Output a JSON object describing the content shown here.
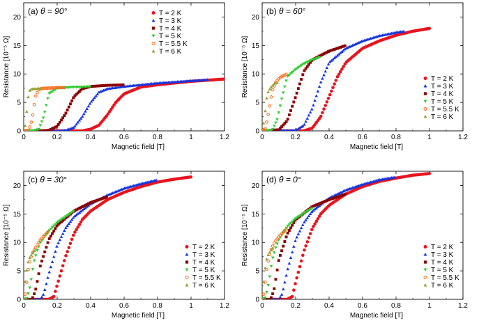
{
  "chart_data": [
    {
      "type": "scatter",
      "panel_label": "(a)",
      "theta_label": "θ = 90°",
      "xlabel": "Magnetic field  [T]",
      "ylabel": "Resistance  [10⁻⁵ Ω]",
      "xlim": [
        0,
        1.2
      ],
      "ylim": [
        0,
        22.5
      ],
      "xticks": [
        0,
        0.2,
        0.4,
        0.6,
        0.8,
        1,
        1.2
      ],
      "xtick_labels": [
        "0",
        "0.2",
        "0.4",
        "0.6",
        "0.8",
        "1",
        "1.2"
      ],
      "yticks": [
        0,
        5,
        10,
        15,
        20
      ],
      "ytick_labels": [
        "0",
        "5",
        "10",
        "15",
        "20"
      ],
      "legend_position": "top-right",
      "series": [
        {
          "name": "T = 2 K",
          "color": "#e8141e",
          "marker": "circle",
          "x": [
            0,
            0.2,
            0.35,
            0.4,
            0.45,
            0.5,
            0.55,
            0.6,
            0.7,
            0.8,
            0.9,
            1.0,
            1.1,
            1.2
          ],
          "y": [
            0,
            0,
            0,
            0.3,
            1.0,
            2.8,
            5.0,
            6.5,
            7.7,
            8.1,
            8.4,
            8.7,
            8.9,
            9.1
          ]
        },
        {
          "name": "T = 3 K",
          "color": "#1535e0",
          "marker": "triangle-up",
          "x": [
            0,
            0.2,
            0.25,
            0.3,
            0.35,
            0.4,
            0.45,
            0.5,
            0.6,
            0.7,
            0.8,
            0.9,
            1.0,
            1.1
          ],
          "y": [
            0,
            0,
            0.1,
            0.6,
            2.5,
            5.0,
            6.8,
            7.4,
            7.8,
            8.1,
            8.4,
            8.6,
            8.8,
            9.0
          ]
        },
        {
          "name": "T = 4 K",
          "color": "#8b0000",
          "marker": "square",
          "x": [
            0,
            0.1,
            0.15,
            0.2,
            0.25,
            0.3,
            0.35,
            0.4,
            0.45,
            0.5,
            0.6
          ],
          "y": [
            0,
            0,
            0.1,
            0.8,
            3.0,
            6.0,
            7.4,
            7.8,
            7.9,
            8.0,
            8.1
          ]
        },
        {
          "name": "T = 5 K",
          "color": "#30cc30",
          "marker": "triangle-down",
          "x": [
            0,
            0.06,
            0.09,
            0.12,
            0.15,
            0.2,
            0.25,
            0.3,
            0.35,
            0.4
          ],
          "y": [
            0,
            0,
            0.3,
            2.5,
            6.5,
            7.5,
            7.6,
            7.7,
            7.7,
            7.8
          ]
        },
        {
          "name": "T = 5.5 K",
          "color": "#ff6a1a",
          "marker": "circle-open",
          "x": [
            0,
            0.03,
            0.05,
            0.07,
            0.09,
            0.12,
            0.15,
            0.2,
            0.25
          ],
          "y": [
            0,
            0.1,
            2.0,
            6.0,
            7.3,
            7.5,
            7.5,
            7.6,
            7.6
          ]
        },
        {
          "name": "T = 6 K",
          "color": "#99a030",
          "marker": "triangle-up",
          "x": [
            0,
            0.01,
            0.02,
            0.03,
            0.04,
            0.06,
            0.08,
            0.1
          ],
          "y": [
            0,
            1.0,
            4.0,
            6.8,
            7.3,
            7.4,
            7.4,
            7.5
          ]
        }
      ]
    },
    {
      "type": "scatter",
      "panel_label": "(b)",
      "theta_label": "θ = 60°",
      "xlabel": "Magnetic field  [T]",
      "ylabel": "Resistance  [10⁻⁵ Ω]",
      "xlim": [
        0,
        1.2
      ],
      "ylim": [
        0,
        22.5
      ],
      "xticks": [
        0,
        0.2,
        0.4,
        0.6,
        0.8,
        1,
        1.2
      ],
      "xtick_labels": [
        "0",
        "0.2",
        "0.4",
        "0.6",
        "0.8",
        "1",
        "1.2"
      ],
      "yticks": [
        0,
        5,
        10,
        15,
        20
      ],
      "ytick_labels": [
        "0",
        "5",
        "10",
        "15",
        "20"
      ],
      "legend_position": "bottom-right",
      "series": [
        {
          "name": "T = 2 K",
          "color": "#e8141e",
          "marker": "circle",
          "x": [
            0,
            0.25,
            0.3,
            0.35,
            0.4,
            0.45,
            0.5,
            0.6,
            0.7,
            0.8,
            0.9,
            1.0
          ],
          "y": [
            0,
            0,
            0.5,
            2.5,
            6.0,
            9.5,
            12.0,
            14.5,
            15.8,
            16.8,
            17.5,
            18.0
          ]
        },
        {
          "name": "T = 3 K",
          "color": "#1535e0",
          "marker": "triangle-up",
          "x": [
            0,
            0.2,
            0.25,
            0.3,
            0.35,
            0.4,
            0.5,
            0.6,
            0.7,
            0.8,
            0.85
          ],
          "y": [
            0,
            0.1,
            1.0,
            4.0,
            8.5,
            12.0,
            14.5,
            15.8,
            16.7,
            17.3,
            17.5
          ]
        },
        {
          "name": "T = 4 K",
          "color": "#8b0000",
          "marker": "square",
          "x": [
            0,
            0.1,
            0.15,
            0.2,
            0.25,
            0.3,
            0.4,
            0.5
          ],
          "y": [
            0,
            0.2,
            1.8,
            6.0,
            10.5,
            12.5,
            14.0,
            15.0
          ]
        },
        {
          "name": "T = 5 K",
          "color": "#30cc30",
          "marker": "triangle-down",
          "x": [
            0,
            0.06,
            0.09,
            0.12,
            0.15,
            0.2,
            0.25,
            0.3,
            0.35
          ],
          "y": [
            0,
            0.1,
            2.0,
            6.0,
            9.5,
            10.8,
            11.8,
            12.5,
            13.0
          ]
        },
        {
          "name": "T = 5.5 K",
          "color": "#ff6a1a",
          "marker": "circle-open",
          "x": [
            0,
            0.02,
            0.04,
            0.06,
            0.08,
            0.1,
            0.12,
            0.15
          ],
          "y": [
            0,
            0.5,
            3.5,
            7.0,
            8.5,
            9.2,
            9.6,
            10.0
          ]
        },
        {
          "name": "T = 6 K",
          "color": "#99a030",
          "marker": "triangle-up",
          "x": [
            0,
            0.01,
            0.02,
            0.03,
            0.05,
            0.07,
            0.09
          ],
          "y": [
            0,
            1.5,
            4.0,
            6.5,
            7.6,
            8.2,
            8.5
          ]
        }
      ]
    },
    {
      "type": "scatter",
      "panel_label": "(c)",
      "theta_label": "θ = 30°",
      "xlabel": "Magnetic field  [T]",
      "ylabel": "Resistance  [10⁻⁵ Ω]",
      "xlim": [
        0,
        1.2
      ],
      "ylim": [
        0,
        22.5
      ],
      "xticks": [
        0,
        0.2,
        0.4,
        0.6,
        0.8,
        1,
        1.2
      ],
      "xtick_labels": [
        "0",
        "0.2",
        "0.4",
        "0.6",
        "0.8",
        "1",
        "1.2"
      ],
      "yticks": [
        0,
        5,
        10,
        15,
        20
      ],
      "ytick_labels": [
        "0",
        "5",
        "10",
        "15",
        "20"
      ],
      "legend_position": "bottom-right",
      "series": [
        {
          "name": "T = 2 K",
          "color": "#e8141e",
          "marker": "circle",
          "x": [
            0,
            0.15,
            0.18,
            0.2,
            0.25,
            0.3,
            0.35,
            0.4,
            0.5,
            0.6,
            0.7,
            0.8,
            0.9,
            1.0
          ],
          "y": [
            0,
            0,
            0.5,
            2.5,
            7.5,
            11.5,
            14.0,
            15.5,
            17.5,
            18.8,
            19.8,
            20.6,
            21.1,
            21.5
          ]
        },
        {
          "name": "T = 3 K",
          "color": "#1535e0",
          "marker": "triangle-up",
          "x": [
            0,
            0.1,
            0.12,
            0.15,
            0.2,
            0.25,
            0.3,
            0.4,
            0.5,
            0.6,
            0.7,
            0.8
          ],
          "y": [
            0,
            0,
            1.0,
            4.5,
            9.5,
            12.5,
            14.5,
            16.8,
            18.3,
            19.5,
            20.3,
            21.0
          ]
        },
        {
          "name": "T = 4 K",
          "color": "#8b0000",
          "marker": "square",
          "x": [
            0,
            0.05,
            0.07,
            0.1,
            0.15,
            0.2,
            0.3,
            0.4,
            0.5
          ],
          "y": [
            0,
            0,
            1.5,
            6.0,
            10.5,
            13.0,
            15.5,
            17.0,
            18.0
          ]
        },
        {
          "name": "T = 5 K",
          "color": "#30cc30",
          "marker": "triangle-down",
          "x": [
            0,
            0.02,
            0.04,
            0.06,
            0.08,
            0.1,
            0.15,
            0.2,
            0.3
          ],
          "y": [
            0,
            0.2,
            2.5,
            6.5,
            8.5,
            10.0,
            12.0,
            13.5,
            15.5
          ]
        },
        {
          "name": "T = 5.5 K",
          "color": "#ff6a1a",
          "marker": "circle-open",
          "x": [
            0,
            0.01,
            0.02,
            0.03,
            0.05,
            0.07,
            0.1,
            0.15
          ],
          "y": [
            0,
            1.0,
            3.5,
            6.0,
            8.0,
            9.0,
            10.5,
            12.0
          ]
        },
        {
          "name": "T = 6 K",
          "color": "#99a030",
          "marker": "triangle-up",
          "x": [
            0,
            0.005,
            0.01,
            0.02,
            0.03,
            0.05,
            0.07
          ],
          "y": [
            0,
            1.5,
            3.5,
            5.5,
            7.0,
            8.0,
            8.8
          ]
        }
      ]
    },
    {
      "type": "scatter",
      "panel_label": "(d)",
      "theta_label": "θ = 0°",
      "xlabel": "Magnetic field  [T]",
      "ylabel": "Resistance  [10⁻⁵ Ω]",
      "xlim": [
        0,
        1.2
      ],
      "ylim": [
        0,
        22.5
      ],
      "xticks": [
        0,
        0.2,
        0.4,
        0.6,
        0.8,
        1,
        1.2
      ],
      "xtick_labels": [
        "0",
        "0.2",
        "0.4",
        "0.6",
        "0.8",
        "1",
        "1.2"
      ],
      "yticks": [
        0,
        5,
        10,
        15,
        20
      ],
      "ytick_labels": [
        "0",
        "5",
        "10",
        "15",
        "20"
      ],
      "legend_position": "bottom-right",
      "series": [
        {
          "name": "T = 2 K",
          "color": "#e8141e",
          "marker": "circle",
          "x": [
            0,
            0.15,
            0.18,
            0.2,
            0.25,
            0.3,
            0.35,
            0.4,
            0.5,
            0.6,
            0.7,
            0.8,
            0.9,
            1.0
          ],
          "y": [
            0,
            0,
            0.5,
            3.0,
            8.5,
            12.5,
            15.0,
            16.5,
            18.5,
            19.8,
            20.7,
            21.3,
            21.8,
            22.1
          ]
        },
        {
          "name": "T = 3 K",
          "color": "#1535e0",
          "marker": "triangle-up",
          "x": [
            0,
            0.1,
            0.12,
            0.15,
            0.2,
            0.25,
            0.3,
            0.4,
            0.5,
            0.6,
            0.7,
            0.8
          ],
          "y": [
            0,
            0,
            1.0,
            5.0,
            10.5,
            13.5,
            15.5,
            17.8,
            19.2,
            20.2,
            21.0,
            21.5
          ]
        },
        {
          "name": "T = 4 K",
          "color": "#8b0000",
          "marker": "square",
          "x": [
            0,
            0.05,
            0.07,
            0.1,
            0.15,
            0.2,
            0.3,
            0.4,
            0.5
          ],
          "y": [
            0,
            0,
            1.5,
            7.0,
            11.5,
            14.0,
            16.3,
            17.5,
            18.5
          ]
        },
        {
          "name": "T = 5 K",
          "color": "#30cc30",
          "marker": "triangle-down",
          "x": [
            0,
            0.02,
            0.04,
            0.06,
            0.08,
            0.1,
            0.15,
            0.2,
            0.3
          ],
          "y": [
            0,
            0.3,
            3.0,
            7.0,
            9.0,
            10.5,
            12.8,
            14.2,
            16.0
          ]
        },
        {
          "name": "T = 5.5 K",
          "color": "#ff6a1a",
          "marker": "circle-open",
          "x": [
            0,
            0.01,
            0.02,
            0.03,
            0.05,
            0.07,
            0.1,
            0.15
          ],
          "y": [
            0,
            1.0,
            3.5,
            6.0,
            8.5,
            9.8,
            11.0,
            12.5
          ]
        },
        {
          "name": "T = 6 K",
          "color": "#99a030",
          "marker": "triangle-up",
          "x": [
            0,
            0.005,
            0.01,
            0.02,
            0.03,
            0.05,
            0.07
          ],
          "y": [
            0,
            1.5,
            3.5,
            6.0,
            7.5,
            8.5,
            9.2
          ]
        }
      ]
    }
  ]
}
